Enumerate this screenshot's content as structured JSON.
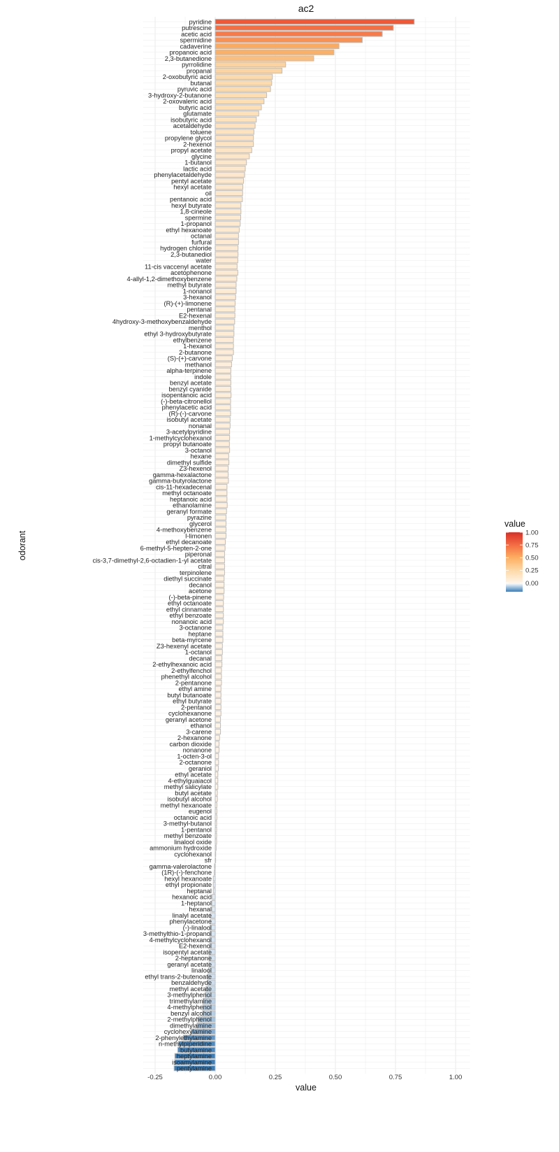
{
  "chart_data": {
    "type": "bar",
    "orientation": "horizontal",
    "title": "ac2",
    "xlabel": "value",
    "ylabel": "odorant",
    "xlim": [
      -0.25,
      1.05
    ],
    "xticks": [
      -0.25,
      0,
      0.25,
      0.5,
      0.75,
      1.0
    ],
    "xtick_labels": [
      "-0.25",
      "0.00",
      "0.25",
      "0.50",
      "0.75",
      "1.00"
    ],
    "grid": true,
    "legend": {
      "title": "value",
      "position": "right",
      "type": "colorbar",
      "ticks": [
        "1.00",
        "0.75",
        "0.50",
        "0.25",
        "0.00"
      ],
      "tick_values": [
        1.0,
        0.75,
        0.5,
        0.25,
        0.0
      ],
      "range": [
        -0.17,
        1.0
      ]
    },
    "colors": {
      "max": "#d73027",
      "mid_high": "#f46d43",
      "mid": "#fdae61",
      "low": "#fdd9a8",
      "zero": "#fff5ea",
      "neg_zero": "#eef4fa",
      "neg": "#3a7db8",
      "bar_outline": "#bdbdbd",
      "grid": "#ebebeb"
    },
    "categories": [
      "pyridine",
      "putrescine",
      "acetic acid",
      "spermidine",
      "cadaverine",
      "propanoic acid",
      "2,3-butanedione",
      "pyrrolidine",
      "propanal",
      "2-oxobutyric acid",
      "butanal",
      "pyruvic acid",
      "3-hydroxy-2-butanone",
      "2-oxovaleric acid",
      "butyric acid",
      "glutamate",
      "isobutyric acid",
      "acetaldehyde",
      "toluene",
      "propylene glycol",
      "2-hexenol",
      "propyl acetate",
      "glycine",
      "1-butanol",
      "lactic acid",
      "phenylacetaldehyde",
      "pentyl acetate",
      "hexyl acetate",
      "oil",
      "pentanoic acid",
      "hexyl butyrate",
      "1,8-cineole",
      "spermine",
      "1-propanol",
      "ethyl hexanoate",
      "octanal",
      "furfural",
      "hydrogen chloride",
      "2,3-butanediol",
      "water",
      "11-cis vaccenyl acetate",
      "acetophenone",
      "4-allyl-1,2-dimethoxybenzene",
      "methyl butyrate",
      "1-nonanol",
      "3-hexanol",
      "(R)-(+)-limonene",
      "pentanal",
      "E2-hexenal",
      "4hydroxy-3-methoxybenzaldehyde",
      "menthol",
      "ethyl 3-hydroxybutyrate",
      "ethylbenzene",
      "1-hexanol",
      "2-butanone",
      "(S)-(+)-carvone",
      "methanol",
      "alpha-terpinene",
      "indole",
      "benzyl acetate",
      "benzyl cyanide",
      "isopentanoic acid",
      "(-)-beta-citronellol",
      "phenylacetic acid",
      "(R)-(-)-carvone",
      "isobutyl acetate",
      "nonanal",
      "3-acetylpyridine",
      "1-methylcyclohexanol",
      "propyl butanoate",
      "3-octanol",
      "hexane",
      "dimethyl sulfide",
      "Z3-hexenol",
      "gamma-hexalactone",
      "gamma-butyrolactone",
      "cis-11-hexadecenal",
      "methyl octanoate",
      "heptanoic acid",
      "ethanolamine",
      "geranyl formate",
      "pyrazine",
      "glycerol",
      "4-methoxybenzene",
      "l-limonen",
      "ethyl decanoate",
      "6-methyl-5-hepten-2-one",
      "piperonal",
      "cis-3,7-dimethyl-2,6-octadien-1-yl acetate",
      "citral",
      "terpinolene",
      "diethyl succinate",
      "decanol",
      "acetone",
      "(-)-beta-pinene",
      "ethyl octanoate",
      "ethyl cinnamate",
      "ethyl benzoate",
      "nonanoic acid",
      "3-octanone",
      "heptane",
      "beta-myrcene",
      "Z3-hexenyl acetate",
      "1-octanol",
      "decanal",
      "2-ethylhexanoic acid",
      "2-ethylfenchol",
      "phenethyl alcohol",
      "2-pentanone",
      "ethyl amine",
      "butyl butanoate",
      "ethyl butyrate",
      "2-pentanol",
      "cyclohexanone",
      "geranyl acetone",
      "ethanol",
      "3-carene",
      "2-hexanone",
      "carbon dioxide",
      "nonanone",
      "1-octen-3-ol",
      "2-octanone",
      "geraniol",
      "ethyl acetate",
      "4-ethylguaiacol",
      "methyl salicylate",
      "butyl acetate",
      "isobutyl alcohol",
      "methyl hexanoate",
      "eugenol",
      "octanoic acid",
      "3-methyl-butanol",
      "1-pentanol",
      "methyl benzoate",
      "linalool oxide",
      "ammonium hydroxide",
      "cyclohexanol",
      "sfr",
      "gamma-valerolactone",
      "(1R)-(-)-fenchone",
      "hexyl hexanoate",
      "ethyl propionate",
      "heptanal",
      "hexanoic acid",
      "1-heptanol",
      "hexanal",
      "linalyl acetate",
      "phenylacetone",
      "(-)-linalool",
      "3-methylthio-1-propanol",
      "4-methylcyclohexanol",
      "E2-hexenol",
      "isopentyl acetate",
      "2-heptanone",
      "geranyl acetate",
      "linalool",
      "ethyl trans-2-butenoate",
      "benzaldehyde",
      "methyl acetate",
      "3-methylphenol",
      "trimethylamine",
      "4-methylphenol",
      "benzyl alcohol",
      "2-methylphenol",
      "dimethylamine",
      "cyclohexylamine",
      "2-phenylethylamine",
      "n-methylpiperidine",
      "butylamine",
      "heptylamine",
      "isoamylamine",
      "pentylamine"
    ],
    "values": [
      0.828,
      0.741,
      0.695,
      0.612,
      0.515,
      0.494,
      0.41,
      0.293,
      0.278,
      0.238,
      0.235,
      0.23,
      0.214,
      0.203,
      0.192,
      0.181,
      0.171,
      0.166,
      0.161,
      0.159,
      0.159,
      0.152,
      0.142,
      0.13,
      0.125,
      0.122,
      0.118,
      0.115,
      0.114,
      0.113,
      0.107,
      0.107,
      0.106,
      0.104,
      0.1,
      0.097,
      0.097,
      0.095,
      0.095,
      0.094,
      0.091,
      0.094,
      0.09,
      0.087,
      0.087,
      0.085,
      0.083,
      0.082,
      0.082,
      0.081,
      0.078,
      0.078,
      0.076,
      0.076,
      0.076,
      0.071,
      0.068,
      0.065,
      0.065,
      0.065,
      0.065,
      0.066,
      0.064,
      0.064,
      0.064,
      0.062,
      0.062,
      0.06,
      0.06,
      0.059,
      0.06,
      0.056,
      0.057,
      0.054,
      0.054,
      0.055,
      0.049,
      0.049,
      0.049,
      0.05,
      0.047,
      0.045,
      0.045,
      0.045,
      0.045,
      0.042,
      0.041,
      0.039,
      0.039,
      0.039,
      0.039,
      0.037,
      0.037,
      0.037,
      0.035,
      0.034,
      0.034,
      0.034,
      0.034,
      0.032,
      0.032,
      0.032,
      0.03,
      0.03,
      0.028,
      0.028,
      0.026,
      0.026,
      0.026,
      0.024,
      0.024,
      0.024,
      0.024,
      0.024,
      0.022,
      0.022,
      0.022,
      0.018,
      0.016,
      0.016,
      0.014,
      0.014,
      0.013,
      0.011,
      0.011,
      0.011,
      0.009,
      0.009,
      0.007,
      0.007,
      0.007,
      0.006,
      0.006,
      0.006,
      0.006,
      0.004,
      0.002,
      0.0,
      -0.003,
      -0.004,
      -0.008,
      -0.008,
      -0.008,
      -0.012,
      -0.014,
      -0.014,
      -0.021,
      -0.02,
      -0.022,
      -0.022,
      -0.024,
      -0.024,
      -0.026,
      -0.026,
      -0.026,
      -0.028,
      -0.031,
      -0.031,
      -0.038,
      -0.042,
      -0.05,
      -0.052,
      -0.053,
      -0.072,
      -0.076,
      -0.1,
      -0.133,
      -0.153,
      -0.156,
      -0.168,
      -0.169,
      -0.171
    ]
  }
}
